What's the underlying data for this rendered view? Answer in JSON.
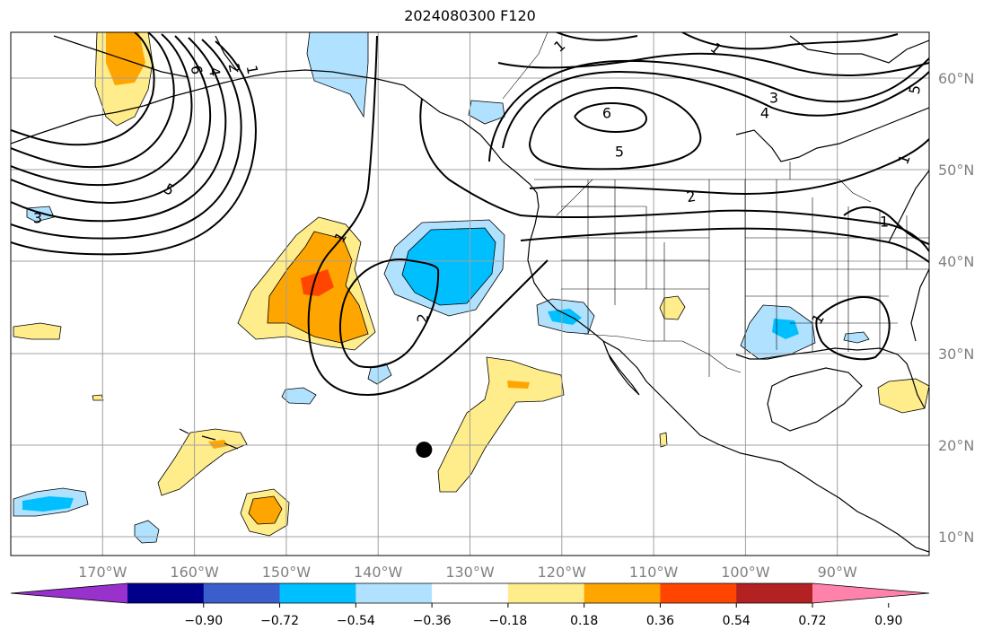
{
  "title": "2024080300 F120",
  "map": {
    "lat_ticks": [
      {
        "value": 60,
        "label": "60°N"
      },
      {
        "value": 50,
        "label": "50°N"
      },
      {
        "value": 40,
        "label": "40°N"
      },
      {
        "value": 30,
        "label": "30°N"
      },
      {
        "value": 20,
        "label": "20°N"
      },
      {
        "value": 10,
        "label": "10°N"
      }
    ],
    "lon_ticks": [
      {
        "value": -170,
        "label": "170°W"
      },
      {
        "value": -160,
        "label": "160°W"
      },
      {
        "value": -150,
        "label": "150°W"
      },
      {
        "value": -140,
        "label": "140°W"
      },
      {
        "value": -130,
        "label": "130°W"
      },
      {
        "value": -120,
        "label": "120°W"
      },
      {
        "value": -110,
        "label": "110°W"
      },
      {
        "value": -100,
        "label": "100°W"
      },
      {
        "value": -90,
        "label": "90°W"
      }
    ],
    "extent": {
      "lon_min": -180,
      "lon_max": -80,
      "lat_min": 8,
      "lat_max": 65
    },
    "contour_labels": [
      "1",
      "1",
      "3",
      "4",
      "5",
      "6",
      "2",
      "1",
      "2",
      "5",
      "3",
      "1",
      "5",
      "6",
      "4",
      "2",
      "1",
      "1",
      "1"
    ],
    "storm_marker": {
      "lon": -135,
      "lat": 19.5
    }
  },
  "colorbar": {
    "colors": [
      "#9932cc",
      "#00008b",
      "#3a5fcd",
      "#00bfff",
      "#b0e2ff",
      "#ffffff",
      "#ffec8b",
      "#ffa500",
      "#ff4500",
      "#b22222",
      "#ff82ab"
    ],
    "tick_labels": [
      "−0.90",
      "−0.72",
      "−0.54",
      "−0.36",
      "−0.18",
      "0.18",
      "0.36",
      "0.54",
      "0.72",
      "0.90"
    ],
    "extend": "both"
  }
}
